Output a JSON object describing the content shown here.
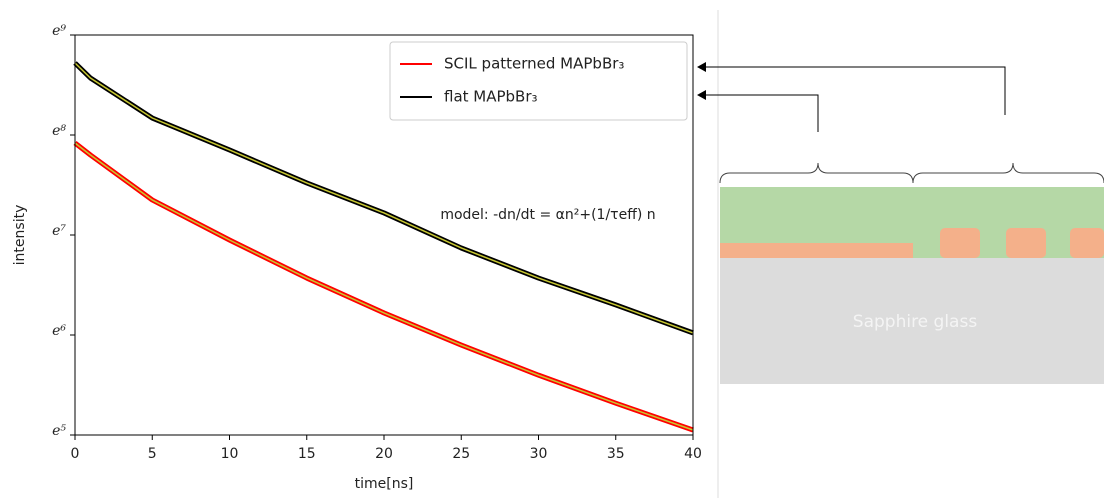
{
  "chart_data": {
    "type": "line",
    "xlabel": "time[ns]",
    "ylabel": "intensity",
    "annotation": "model: -dn/dt = αn²+(1/τeff) n",
    "x": [
      0,
      1,
      5,
      10,
      15,
      20,
      25,
      30,
      35,
      40
    ],
    "series": [
      {
        "name": "SCIL patterned MAPbBr₃",
        "color": "#ff0000",
        "values": [
          2752,
          2441,
          1557,
          1043,
          713,
          503,
          365,
          270,
          204,
          156
        ]
      },
      {
        "name": "flat MAPbBr₃",
        "color": "#000000",
        "values": [
          6124,
          5271,
          3533,
          2567,
          1845,
          1367,
          963,
          713,
          545,
          412
        ]
      }
    ],
    "fit_color": "#c8c832",
    "xlim": [
      0,
      40
    ],
    "xticks": [
      0,
      5,
      10,
      15,
      20,
      25,
      30,
      35,
      40
    ],
    "yscale": "log",
    "ylim": [
      148.41,
      8103.08
    ],
    "yticks": [
      {
        "value": 148.41,
        "label": "e⁵"
      },
      {
        "value": 403.43,
        "label": "e⁶"
      },
      {
        "value": 1096.63,
        "label": "e⁷"
      },
      {
        "value": 2980.96,
        "label": "e⁸"
      },
      {
        "value": 8103.08,
        "label": "e⁹"
      }
    ],
    "legend": "upper right"
  },
  "diagram": {
    "substrate_label": "Sapphire glass"
  }
}
